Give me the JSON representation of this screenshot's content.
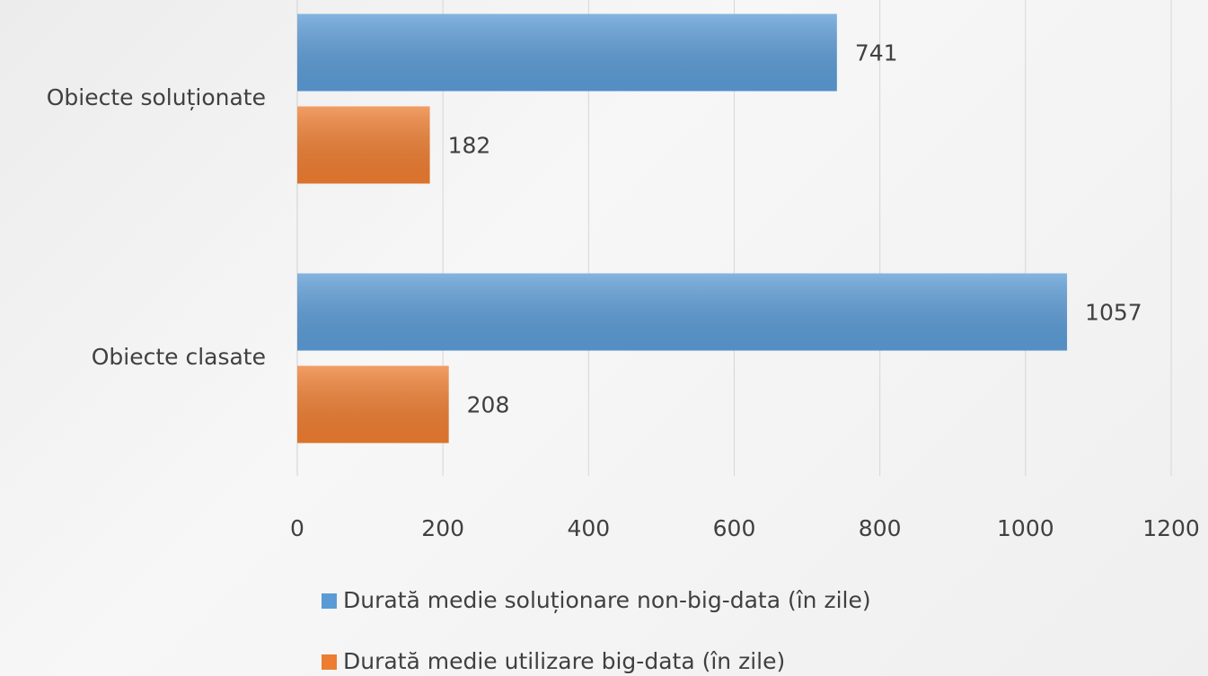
{
  "chart_data": {
    "type": "barh",
    "categories": [
      "Obiecte soluționate",
      "Obiecte clasate"
    ],
    "series": [
      {
        "name": "Durată medie soluționare non-big-data (în zile)",
        "color": "#5b9bd5",
        "values": [
          741,
          1057
        ]
      },
      {
        "name": "Durată medie utilizare big-data (în zile)",
        "color": "#ed7d31",
        "values": [
          182,
          208
        ]
      }
    ],
    "xlim": [
      0,
      1200
    ],
    "xticks": [
      0,
      200,
      400,
      600,
      800,
      1000,
      1200
    ],
    "grid": true,
    "legend": "bottom"
  }
}
